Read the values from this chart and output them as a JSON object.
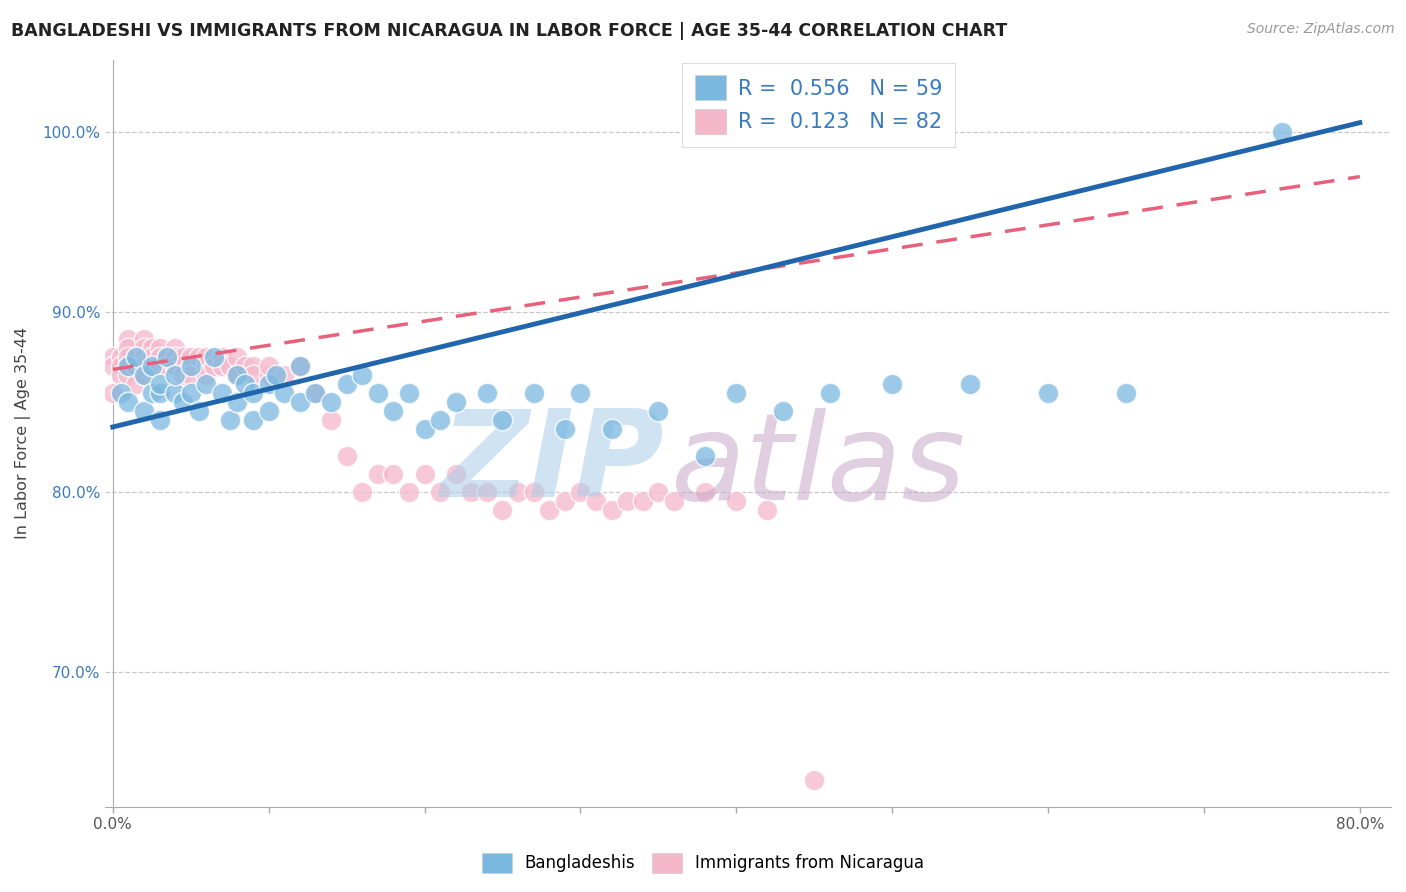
{
  "title": "BANGLADESHI VS IMMIGRANTS FROM NICARAGUA IN LABOR FORCE | AGE 35-44 CORRELATION CHART",
  "source": "Source: ZipAtlas.com",
  "ylabel": "In Labor Force | Age 35-44",
  "x_ticks": [
    0.0,
    0.1,
    0.2,
    0.3,
    0.4,
    0.5,
    0.6,
    0.7,
    0.8
  ],
  "y_ticks": [
    0.7,
    0.8,
    0.9,
    1.0
  ],
  "xlim": [
    -0.005,
    0.82
  ],
  "ylim": [
    0.625,
    1.04
  ],
  "blue_R": 0.556,
  "blue_N": 59,
  "pink_R": 0.123,
  "pink_N": 82,
  "blue_color": "#7ab8e0",
  "pink_color": "#f5b8cb",
  "blue_edge_color": "#5a9fd4",
  "pink_edge_color": "#f090aa",
  "blue_line_color": "#2166ac",
  "pink_line_color": "#e8607a",
  "grid_color": "#c8c8c8",
  "watermark": "ZIPatlas",
  "watermark_color_ZIP": "#a8cce8",
  "watermark_color_atlas": "#c0a0c0",
  "legend_label_blue": "Bangladeshis",
  "legend_label_pink": "Immigrants from Nicaragua",
  "blue_line_x0": 0.0,
  "blue_line_y0": 0.836,
  "blue_line_x1": 0.8,
  "blue_line_y1": 1.005,
  "pink_line_x0": 0.0,
  "pink_line_y0": 0.868,
  "pink_line_x1": 0.8,
  "pink_line_y1": 0.975,
  "blue_x": [
    0.005,
    0.01,
    0.01,
    0.015,
    0.02,
    0.02,
    0.025,
    0.025,
    0.03,
    0.03,
    0.03,
    0.035,
    0.04,
    0.04,
    0.045,
    0.05,
    0.05,
    0.055,
    0.06,
    0.065,
    0.07,
    0.075,
    0.08,
    0.08,
    0.085,
    0.09,
    0.09,
    0.1,
    0.1,
    0.105,
    0.11,
    0.12,
    0.12,
    0.13,
    0.14,
    0.15,
    0.16,
    0.17,
    0.18,
    0.19,
    0.2,
    0.21,
    0.22,
    0.24,
    0.25,
    0.27,
    0.29,
    0.3,
    0.32,
    0.35,
    0.38,
    0.4,
    0.43,
    0.46,
    0.5,
    0.55,
    0.6,
    0.65,
    0.75
  ],
  "blue_y": [
    0.855,
    0.87,
    0.85,
    0.875,
    0.865,
    0.845,
    0.855,
    0.87,
    0.855,
    0.84,
    0.86,
    0.875,
    0.855,
    0.865,
    0.85,
    0.855,
    0.87,
    0.845,
    0.86,
    0.875,
    0.855,
    0.84,
    0.865,
    0.85,
    0.86,
    0.855,
    0.84,
    0.86,
    0.845,
    0.865,
    0.855,
    0.85,
    0.87,
    0.855,
    0.85,
    0.86,
    0.865,
    0.855,
    0.845,
    0.855,
    0.835,
    0.84,
    0.85,
    0.855,
    0.84,
    0.855,
    0.835,
    0.855,
    0.835,
    0.845,
    0.82,
    0.855,
    0.845,
    0.855,
    0.86,
    0.86,
    0.855,
    0.855,
    1.0
  ],
  "pink_x": [
    0.0,
    0.0,
    0.0,
    0.005,
    0.005,
    0.005,
    0.01,
    0.01,
    0.01,
    0.01,
    0.01,
    0.015,
    0.015,
    0.015,
    0.02,
    0.02,
    0.02,
    0.02,
    0.02,
    0.025,
    0.025,
    0.025,
    0.03,
    0.03,
    0.03,
    0.03,
    0.035,
    0.035,
    0.04,
    0.04,
    0.04,
    0.04,
    0.045,
    0.045,
    0.05,
    0.05,
    0.05,
    0.055,
    0.06,
    0.06,
    0.06,
    0.065,
    0.07,
    0.07,
    0.075,
    0.08,
    0.08,
    0.085,
    0.09,
    0.09,
    0.1,
    0.1,
    0.11,
    0.12,
    0.13,
    0.14,
    0.15,
    0.16,
    0.17,
    0.18,
    0.19,
    0.2,
    0.21,
    0.22,
    0.23,
    0.24,
    0.25,
    0.26,
    0.27,
    0.28,
    0.29,
    0.3,
    0.31,
    0.32,
    0.33,
    0.34,
    0.35,
    0.36,
    0.38,
    0.4,
    0.42,
    0.45
  ],
  "pink_y": [
    0.855,
    0.875,
    0.87,
    0.875,
    0.87,
    0.865,
    0.885,
    0.88,
    0.875,
    0.87,
    0.865,
    0.87,
    0.86,
    0.875,
    0.885,
    0.88,
    0.875,
    0.87,
    0.865,
    0.87,
    0.88,
    0.875,
    0.87,
    0.88,
    0.875,
    0.87,
    0.875,
    0.87,
    0.87,
    0.88,
    0.875,
    0.87,
    0.875,
    0.865,
    0.87,
    0.875,
    0.865,
    0.875,
    0.87,
    0.875,
    0.865,
    0.87,
    0.875,
    0.87,
    0.87,
    0.875,
    0.865,
    0.87,
    0.87,
    0.865,
    0.865,
    0.87,
    0.865,
    0.87,
    0.855,
    0.84,
    0.82,
    0.8,
    0.81,
    0.81,
    0.8,
    0.81,
    0.8,
    0.81,
    0.8,
    0.8,
    0.79,
    0.8,
    0.8,
    0.79,
    0.795,
    0.8,
    0.795,
    0.79,
    0.795,
    0.795,
    0.8,
    0.795,
    0.8,
    0.795,
    0.79,
    0.64
  ]
}
